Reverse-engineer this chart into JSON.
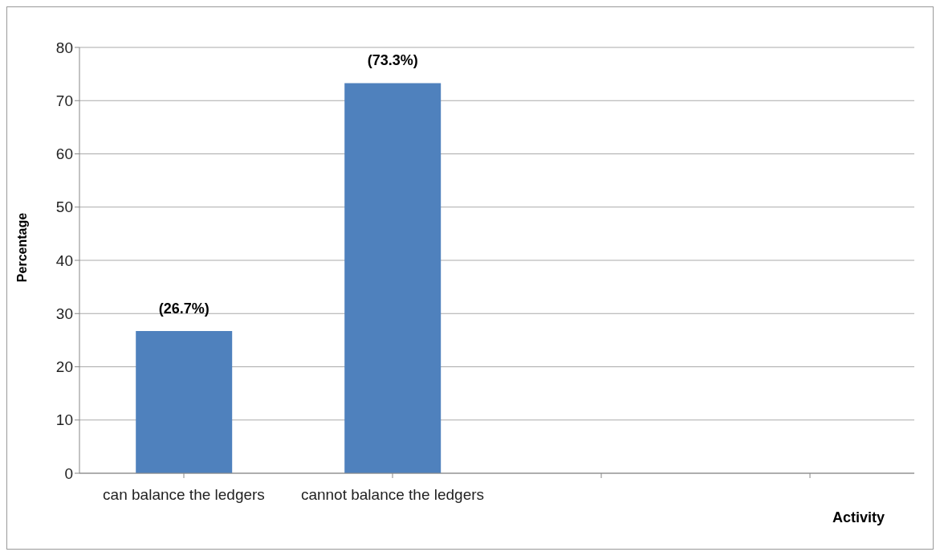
{
  "chart_data": {
    "type": "bar",
    "ylabel": "Percentage",
    "xlabel": "Activity",
    "categories": [
      "can balance the ledgers",
      "cannot balance the ledgers",
      null,
      null
    ],
    "values": [
      26.7,
      73.3,
      null,
      null
    ],
    "value_labels": [
      "(26.7%)",
      "(73.3%)",
      null,
      null
    ],
    "color": "#4f81bd",
    "ylim": [
      0,
      80
    ],
    "yticks": [
      0,
      10,
      20,
      30,
      40,
      50,
      60,
      70,
      80
    ],
    "grid": "y"
  }
}
